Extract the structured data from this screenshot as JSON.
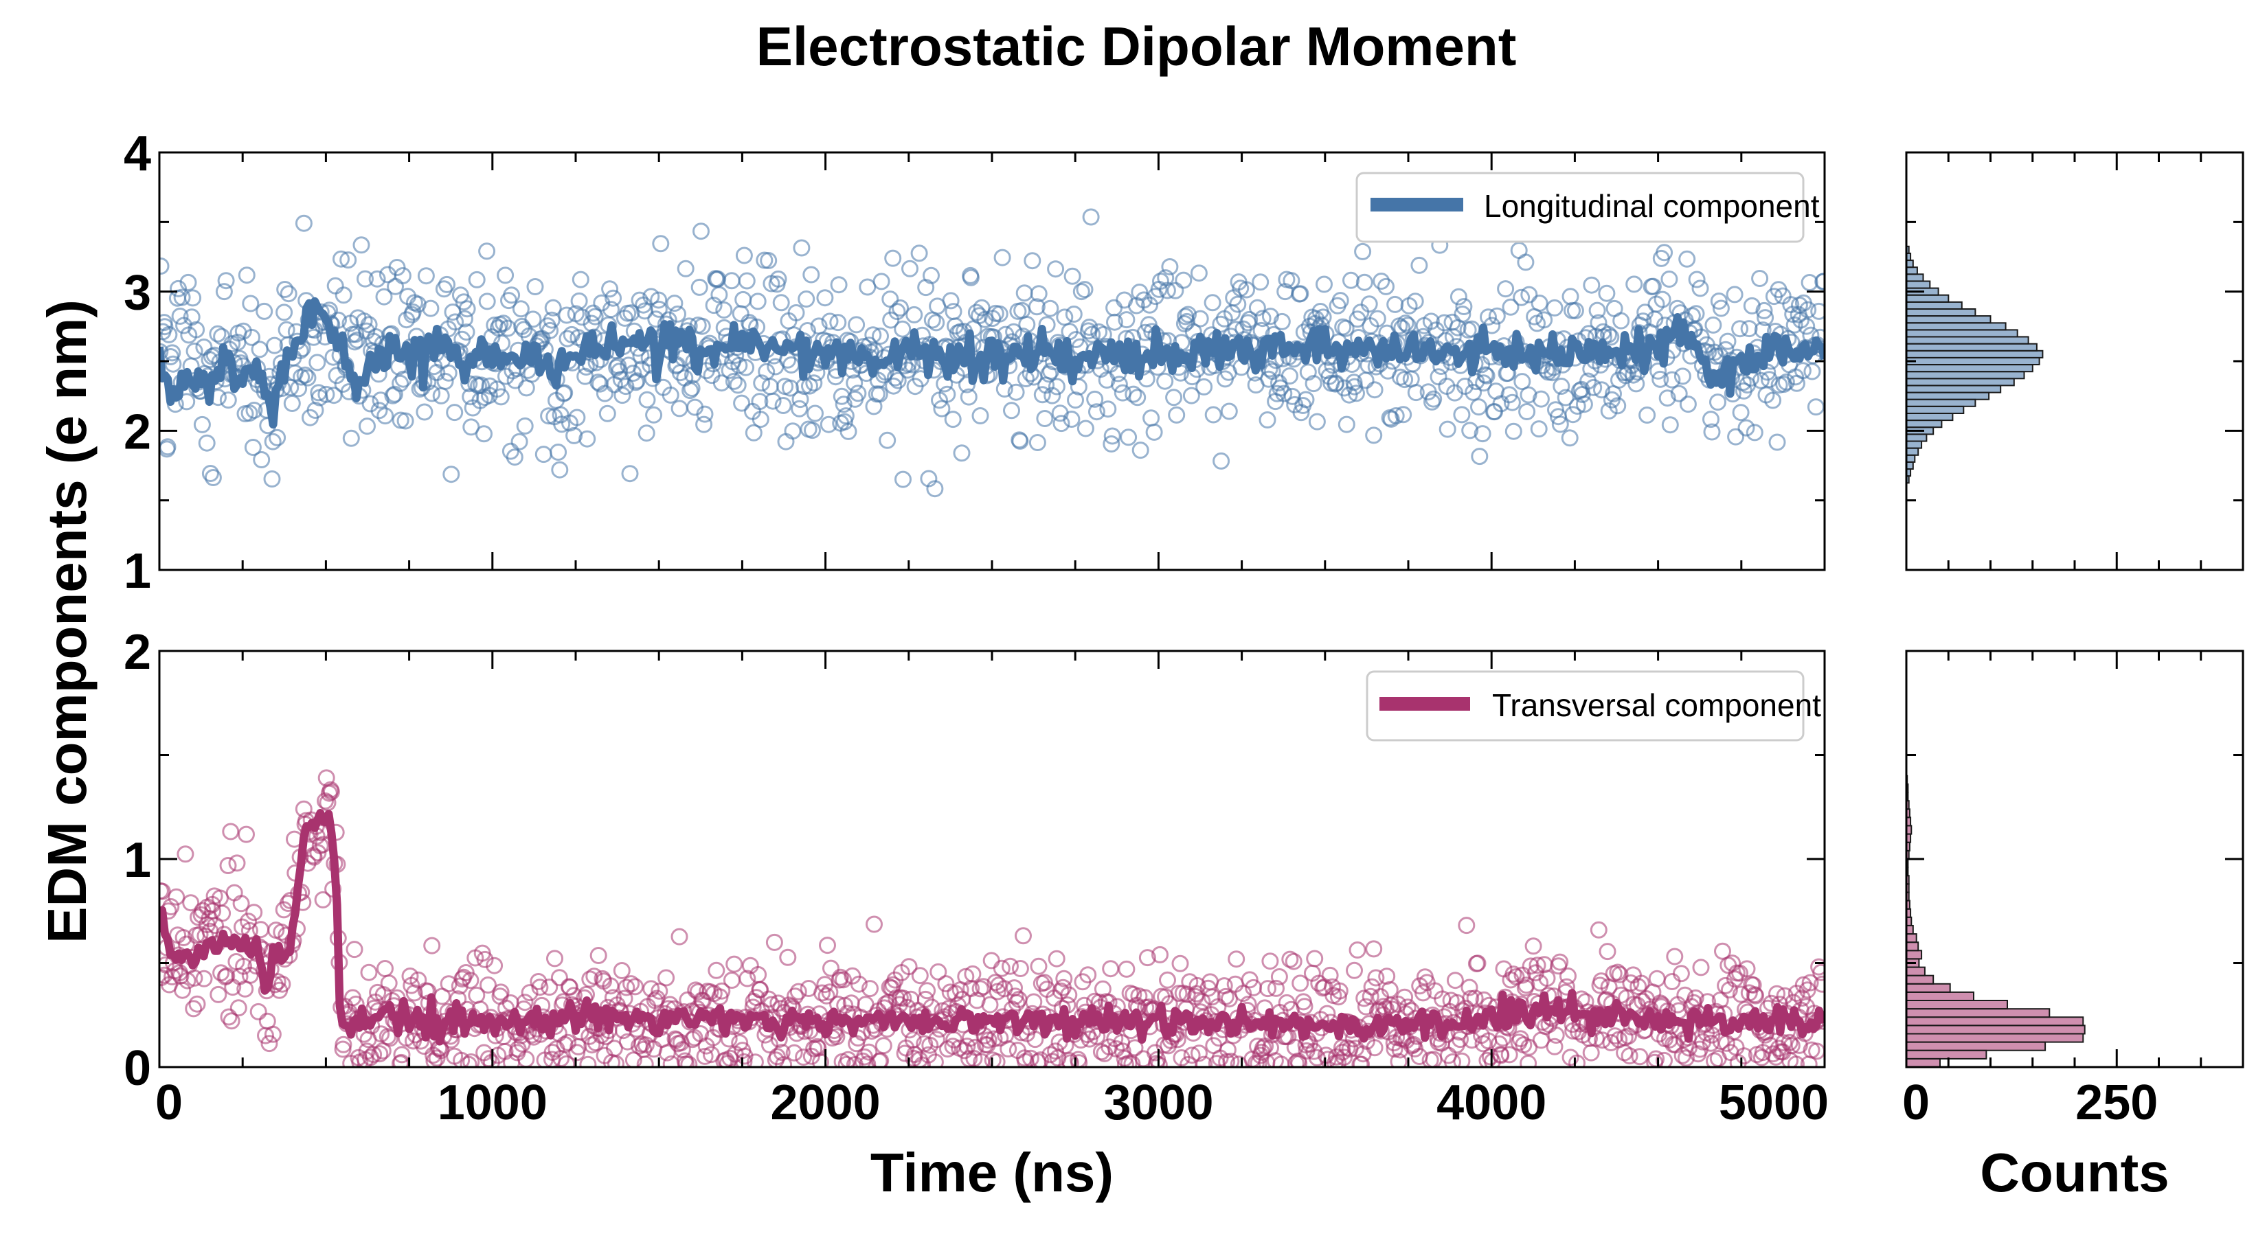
{
  "chart_data": {
    "type": "scatter",
    "title": "Electrostatic Dipolar Moment",
    "ylabel": "EDM components (e nm)",
    "xlabel": "Time (ns)",
    "hist_xlabel": "Counts",
    "xlim": [
      0,
      5000
    ],
    "x_ticks": [
      0,
      1000,
      2000,
      3000,
      4000,
      5000
    ],
    "x_tick_labels": [
      "0",
      "1000",
      "2000",
      "3000",
      "4000",
      "5000"
    ],
    "hist_xlim": [
      0,
      400
    ],
    "hist_x_ticks": [
      0,
      250
    ],
    "hist_x_tick_labels": [
      "0",
      "250"
    ],
    "panels": [
      {
        "name": "longitudinal",
        "legend": "Longitudinal component",
        "color": "#4575a8",
        "ylim": [
          1,
          4
        ],
        "y_ticks": [
          1,
          2,
          3,
          4
        ],
        "y_tick_labels": [
          "1",
          "2",
          "3",
          "4"
        ],
        "scatter_mean": 2.58,
        "scatter_std": 0.3,
        "line_anchors": [
          [
            0,
            2.55
          ],
          [
            30,
            2.25
          ],
          [
            80,
            2.35
          ],
          [
            150,
            2.3
          ],
          [
            200,
            2.6
          ],
          [
            250,
            2.3
          ],
          [
            300,
            2.35
          ],
          [
            340,
            2.1
          ],
          [
            380,
            2.55
          ],
          [
            420,
            2.65
          ],
          [
            450,
            2.8
          ],
          [
            480,
            2.85
          ],
          [
            520,
            2.75
          ],
          [
            560,
            2.55
          ],
          [
            590,
            2.2
          ],
          [
            620,
            2.5
          ],
          [
            680,
            2.6
          ],
          [
            800,
            2.55
          ],
          [
            1000,
            2.55
          ],
          [
            1200,
            2.45
          ],
          [
            1300,
            2.65
          ],
          [
            1500,
            2.6
          ],
          [
            2000,
            2.55
          ],
          [
            2500,
            2.55
          ],
          [
            3000,
            2.55
          ],
          [
            3500,
            2.6
          ],
          [
            4000,
            2.55
          ],
          [
            4500,
            2.6
          ],
          [
            4600,
            2.75
          ],
          [
            4650,
            2.35
          ],
          [
            4800,
            2.55
          ],
          [
            5000,
            2.6
          ]
        ],
        "hist_bins": [
          [
            1.65,
            3
          ],
          [
            1.7,
            5
          ],
          [
            1.75,
            8
          ],
          [
            1.8,
            10
          ],
          [
            1.85,
            14
          ],
          [
            1.9,
            18
          ],
          [
            1.95,
            24
          ],
          [
            2.0,
            32
          ],
          [
            2.05,
            42
          ],
          [
            2.1,
            55
          ],
          [
            2.15,
            68
          ],
          [
            2.2,
            82
          ],
          [
            2.25,
            98
          ],
          [
            2.3,
            112
          ],
          [
            2.35,
            128
          ],
          [
            2.4,
            140
          ],
          [
            2.45,
            150
          ],
          [
            2.5,
            158
          ],
          [
            2.55,
            162
          ],
          [
            2.6,
            155
          ],
          [
            2.65,
            145
          ],
          [
            2.7,
            132
          ],
          [
            2.75,
            118
          ],
          [
            2.8,
            100
          ],
          [
            2.85,
            82
          ],
          [
            2.9,
            66
          ],
          [
            2.95,
            50
          ],
          [
            3.0,
            38
          ],
          [
            3.05,
            28
          ],
          [
            3.1,
            20
          ],
          [
            3.15,
            13
          ],
          [
            3.2,
            8
          ],
          [
            3.25,
            5
          ],
          [
            3.3,
            3
          ]
        ]
      },
      {
        "name": "transversal",
        "legend": "Transversal component",
        "color": "#a8336e",
        "ylim": [
          0,
          2
        ],
        "y_ticks": [
          0,
          1,
          2
        ],
        "y_tick_labels": [
          "0",
          "1",
          "2"
        ],
        "scatter_mean": 0.23,
        "scatter_std": 0.15,
        "line_anchors": [
          [
            0,
            0.75
          ],
          [
            30,
            0.55
          ],
          [
            100,
            0.55
          ],
          [
            150,
            0.6
          ],
          [
            200,
            0.6
          ],
          [
            250,
            0.58
          ],
          [
            300,
            0.55
          ],
          [
            320,
            0.38
          ],
          [
            350,
            0.55
          ],
          [
            390,
            0.55
          ],
          [
            410,
            0.8
          ],
          [
            440,
            1.15
          ],
          [
            480,
            1.2
          ],
          [
            510,
            1.2
          ],
          [
            530,
            0.95
          ],
          [
            545,
            0.2
          ],
          [
            600,
            0.22
          ],
          [
            700,
            0.25
          ],
          [
            800,
            0.22
          ],
          [
            1000,
            0.22
          ],
          [
            1300,
            0.25
          ],
          [
            1500,
            0.22
          ],
          [
            2000,
            0.22
          ],
          [
            2500,
            0.22
          ],
          [
            3000,
            0.22
          ],
          [
            3500,
            0.2
          ],
          [
            4000,
            0.22
          ],
          [
            4200,
            0.28
          ],
          [
            4500,
            0.22
          ],
          [
            5000,
            0.22
          ]
        ],
        "hist_bins": [
          [
            0.02,
            40
          ],
          [
            0.06,
            95
          ],
          [
            0.1,
            165
          ],
          [
            0.14,
            210
          ],
          [
            0.18,
            212
          ],
          [
            0.22,
            210
          ],
          [
            0.26,
            170
          ],
          [
            0.3,
            120
          ],
          [
            0.34,
            80
          ],
          [
            0.38,
            52
          ],
          [
            0.42,
            32
          ],
          [
            0.46,
            22
          ],
          [
            0.5,
            15
          ],
          [
            0.54,
            18
          ],
          [
            0.58,
            14
          ],
          [
            0.62,
            12
          ],
          [
            0.66,
            8
          ],
          [
            0.7,
            6
          ],
          [
            0.74,
            5
          ],
          [
            0.78,
            4
          ],
          [
            0.82,
            3
          ],
          [
            0.86,
            3
          ],
          [
            0.9,
            3
          ],
          [
            0.94,
            2
          ],
          [
            0.98,
            2
          ],
          [
            1.02,
            3
          ],
          [
            1.06,
            4
          ],
          [
            1.1,
            5
          ],
          [
            1.14,
            6
          ],
          [
            1.18,
            5
          ],
          [
            1.22,
            4
          ],
          [
            1.26,
            3
          ],
          [
            1.3,
            2
          ],
          [
            1.34,
            2
          ],
          [
            1.38,
            1
          ]
        ]
      }
    ]
  }
}
